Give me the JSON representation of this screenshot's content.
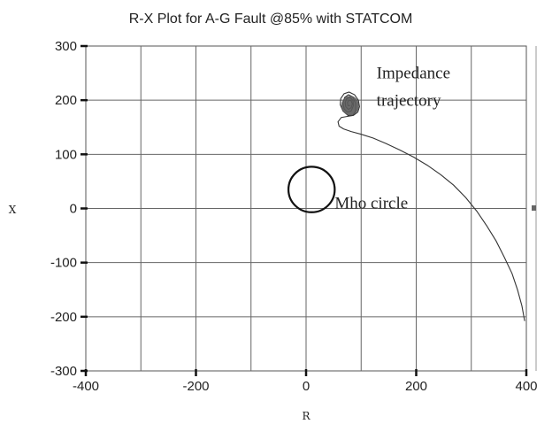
{
  "chart_data": {
    "type": "scatter",
    "title": "R-X Plot for A-G Fault @85% with STATCOM",
    "xlabel": "R",
    "ylabel": "X",
    "xlim": [
      -400,
      400
    ],
    "ylim": [
      -300,
      300
    ],
    "xticks": [
      -400,
      -200,
      0,
      200,
      400
    ],
    "yticks": [
      300,
      200,
      100,
      0,
      -100,
      -200,
      -300
    ],
    "grid": true,
    "series": [
      {
        "name": "Impedance trajectory",
        "color": "#333333",
        "x": [
          397,
          392,
          384,
          374,
          360,
          345,
          328,
          310,
          290,
          268,
          245,
          220,
          195,
          170,
          145,
          122,
          100,
          82,
          68,
          60,
          58,
          64,
          75,
          86,
          94,
          97,
          95,
          88,
          78,
          69,
          63,
          62,
          67,
          76,
          85,
          90,
          90,
          85,
          77,
          70,
          67,
          69,
          75,
          82,
          86,
          85,
          80,
          74,
          71,
          72,
          77,
          82,
          84,
          82,
          78,
          75,
          76,
          80
        ],
        "y": [
          -208,
          -180,
          -150,
          -120,
          -90,
          -60,
          -32,
          -5,
          20,
          43,
          62,
          80,
          95,
          108,
          120,
          130,
          137,
          142,
          147,
          152,
          160,
          168,
          170,
          172,
          178,
          188,
          200,
          210,
          215,
          212,
          203,
          192,
          180,
          172,
          172,
          180,
          194,
          206,
          210,
          205,
          195,
          184,
          178,
          180,
          190,
          200,
          205,
          203,
          196,
          188,
          183,
          186,
          193,
          199,
          200,
          196,
          190,
          190
        ]
      },
      {
        "name": "Mho circle",
        "color": "#111111",
        "center": [
          10,
          35
        ],
        "radius": 42
      }
    ],
    "annotations": [
      {
        "text": "Impedance",
        "x": 128,
        "y": 240
      },
      {
        "text": "trajectory",
        "x": 128,
        "y": 190
      },
      {
        "text": "Mho circle",
        "x": 52,
        "y": 0
      }
    ]
  }
}
